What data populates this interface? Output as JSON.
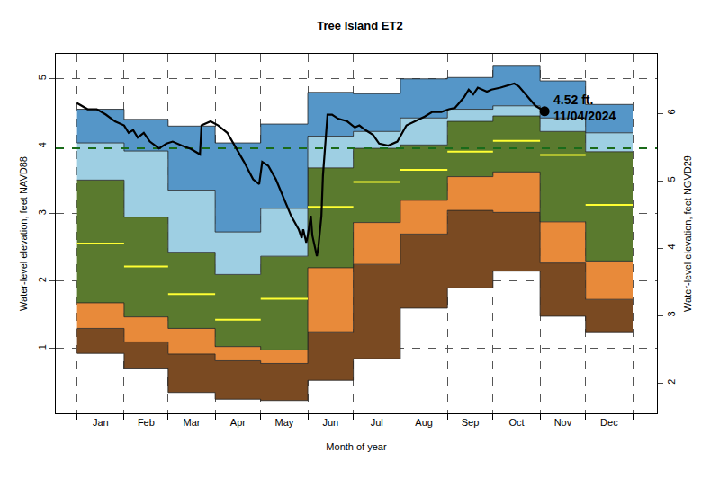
{
  "chart_data": {
    "type": "line",
    "title": "Tree Island ET2",
    "x_label": "Month of year",
    "y_label": "Water-level elevation, feet NAVD88",
    "y2_label": "Water-level elevation, feet NGVD29",
    "xlim": [
      -14,
      382
    ],
    "xticks": [
      {
        "value": 15.5,
        "label": "Jan"
      },
      {
        "value": 45.5,
        "label": "Feb"
      },
      {
        "value": 75.5,
        "label": "Mar"
      },
      {
        "value": 106,
        "label": "Apr"
      },
      {
        "value": 136.5,
        "label": "May"
      },
      {
        "value": 167,
        "label": "Jun"
      },
      {
        "value": 197.5,
        "label": "Jul"
      },
      {
        "value": 228.5,
        "label": "Aug"
      },
      {
        "value": 259,
        "label": "Sep"
      },
      {
        "value": 289.5,
        "label": "Oct"
      },
      {
        "value": 320,
        "label": "Nov"
      },
      {
        "value": 350.5,
        "label": "Dec"
      }
    ],
    "month_starts": [
      0,
      31,
      60,
      91,
      121,
      152,
      182,
      213,
      244,
      274,
      305,
      335,
      366
    ],
    "ylim": [
      0.04,
      5.37
    ],
    "yticks": [
      1,
      2,
      3,
      4,
      5
    ],
    "y2lim": [
      1.55,
      6.88
    ],
    "y2ticks": [
      2,
      3,
      4,
      5,
      6
    ],
    "grid": true,
    "bands": [
      {
        "color": "#7a4a22",
        "values": [
          0.93,
          0.7,
          0.35,
          0.25,
          0.23,
          0.53,
          0.85,
          1.6,
          1.9,
          2.15,
          1.48,
          1.25
        ]
      },
      {
        "color": "#7a4a22",
        "values": [
          1.3,
          1.1,
          0.92,
          0.82,
          0.78,
          1.25,
          2.25,
          2.7,
          3.05,
          3.02,
          2.27,
          1.73
        ]
      },
      {
        "color": "#e88a3a",
        "values": [
          1.68,
          1.47,
          1.3,
          1.03,
          0.98,
          2.2,
          2.87,
          3.2,
          3.55,
          3.62,
          2.88,
          2.3
        ]
      },
      {
        "color": "#5a7a2e",
        "values": [
          3.5,
          2.95,
          2.43,
          2.1,
          2.37,
          3.68,
          3.97,
          4.02,
          4.37,
          4.45,
          4.22,
          3.92
        ]
      },
      {
        "color": "#9ecfe3",
        "values": [
          4.05,
          3.93,
          3.35,
          2.73,
          3.08,
          4.15,
          4.22,
          4.42,
          4.55,
          4.6,
          4.42,
          4.2
        ]
      },
      {
        "color": "#5596c8",
        "values": [
          4.55,
          4.4,
          4.3,
          4.05,
          4.33,
          4.8,
          4.78,
          5.0,
          5.02,
          5.2,
          4.97,
          4.62
        ]
      }
    ],
    "median": {
      "color": "#ffff33",
      "values": [
        2.56,
        2.22,
        1.81,
        1.43,
        1.74,
        3.1,
        3.47,
        3.65,
        3.92,
        4.08,
        3.87,
        3.13
      ]
    },
    "reference_line": {
      "value": 3.97,
      "color": "#1a6b1a",
      "line_style": "dash"
    },
    "series": [
      {
        "color": "#000000",
        "x": [
          0,
          7,
          13,
          19,
          25,
          31,
          34,
          37,
          40,
          44,
          48,
          54,
          59,
          63,
          69,
          75,
          81,
          82,
          88,
          93,
          99,
          105,
          110,
          116,
          120,
          122,
          126,
          131,
          137,
          141,
          146,
          148,
          149,
          151,
          152,
          154,
          155,
          158,
          159,
          161,
          162,
          165,
          168,
          172,
          178,
          183,
          186,
          190,
          195,
          199,
          205,
          211,
          217,
          223,
          229,
          234,
          240,
          245,
          249,
          255,
          258,
          261,
          264,
          270,
          273,
          279,
          285,
          288,
          291,
          297,
          302,
          308
        ],
        "values": [
          4.64,
          4.55,
          4.55,
          4.47,
          4.37,
          4.31,
          4.2,
          4.24,
          4.13,
          4.2,
          4.07,
          3.97,
          4.04,
          4.07,
          4.01,
          3.96,
          3.88,
          4.31,
          4.37,
          4.31,
          4.2,
          3.97,
          3.77,
          3.51,
          3.44,
          3.77,
          3.71,
          3.51,
          3.17,
          2.97,
          2.77,
          2.64,
          2.77,
          2.57,
          2.68,
          2.97,
          2.68,
          2.37,
          2.51,
          2.97,
          3.57,
          4.47,
          4.47,
          4.41,
          4.37,
          4.28,
          4.31,
          4.24,
          4.17,
          4.04,
          4.01,
          4.07,
          4.31,
          4.37,
          4.44,
          4.51,
          4.51,
          4.55,
          4.57,
          4.73,
          4.84,
          4.77,
          4.87,
          4.81,
          4.84,
          4.87,
          4.91,
          4.93,
          4.89,
          4.73,
          4.6,
          4.52
        ]
      }
    ],
    "annotation": {
      "x": 308,
      "y": 4.52,
      "text": [
        "4.52 ft.",
        "11/04/2024"
      ],
      "marker": "circle"
    }
  }
}
